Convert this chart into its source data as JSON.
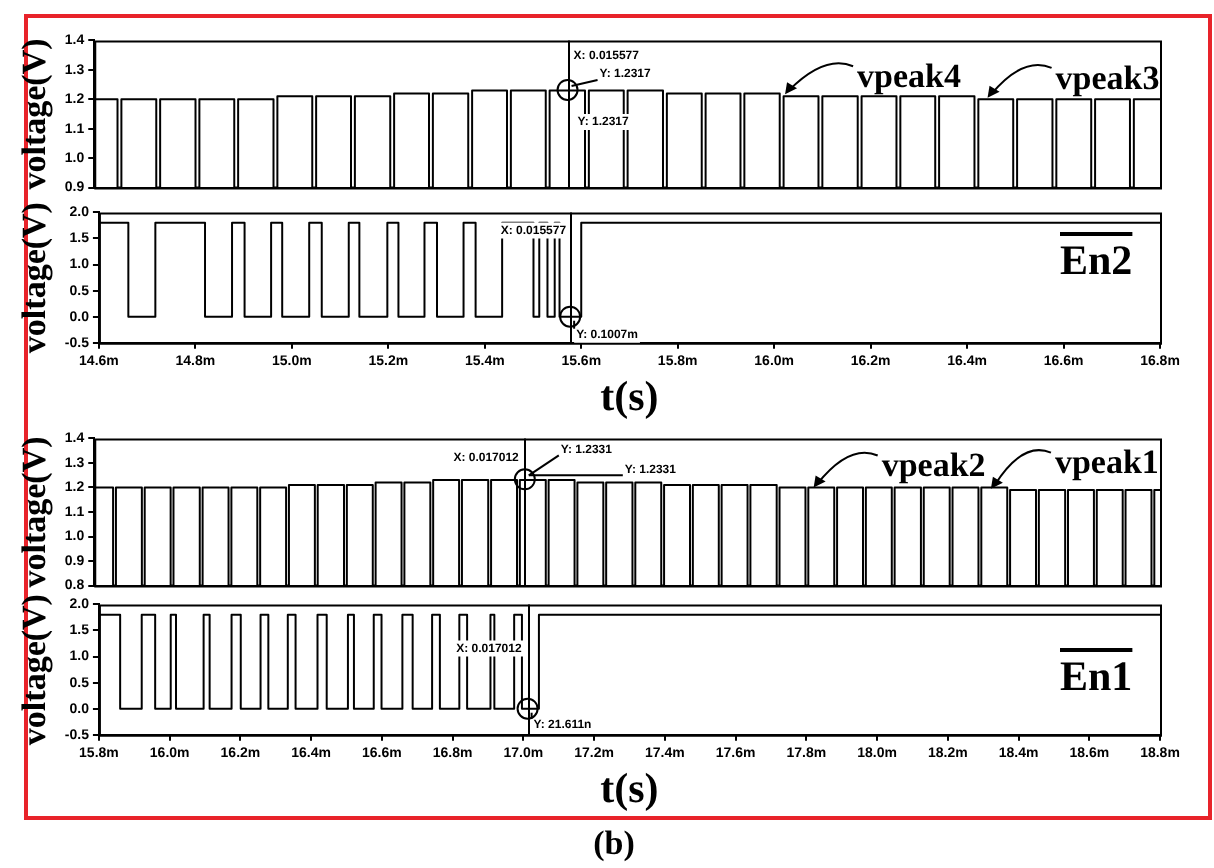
{
  "chart_data": [
    {
      "type": "step",
      "ylabel": "voltage(V)",
      "xlim": [
        14.6,
        16.8
      ],
      "ylim": [
        0.9,
        1.4
      ],
      "tick_labels": "y",
      "legend": false,
      "grid": false,
      "marker": "none",
      "xticks": [
        {
          "value": 14.6,
          "label": null
        },
        {
          "value": 14.8,
          "label": null
        },
        {
          "value": 15.0,
          "label": null
        },
        {
          "value": 15.2,
          "label": null
        },
        {
          "value": 15.4,
          "label": null
        },
        {
          "value": 15.6,
          "label": null
        },
        {
          "value": 15.8,
          "label": null
        },
        {
          "value": 16.0,
          "label": null
        },
        {
          "value": 16.2,
          "label": null
        },
        {
          "value": 16.4,
          "label": null
        },
        {
          "value": 16.6,
          "label": null
        },
        {
          "value": 16.8,
          "label": null
        }
      ],
      "yticks": [
        0.9,
        {
          "value": 1.0,
          "label": "1.0"
        },
        1.1,
        1.2,
        1.3,
        1.4
      ],
      "series": [
        {
          "color": "#000000",
          "x": [
            14.6,
            14.648,
            14.656,
            14.728,
            14.736,
            14.809,
            14.817,
            14.889,
            14.897,
            14.97,
            14.978,
            15.05,
            15.058,
            15.13,
            15.138,
            15.211,
            15.219,
            15.291,
            15.299,
            15.372,
            15.38,
            15.452,
            15.46,
            15.532,
            15.54,
            15.613,
            15.621,
            15.693,
            15.701,
            15.774,
            15.782,
            15.854,
            15.862,
            15.934,
            15.942,
            16.015,
            16.023,
            16.095,
            16.103,
            16.176,
            16.184,
            16.256,
            16.264,
            16.336,
            16.344,
            16.417,
            16.425,
            16.497,
            16.505,
            16.578,
            16.586,
            16.658,
            16.666,
            16.738,
            16.746,
            16.8
          ],
          "values": [
            1.2,
            0.9,
            1.2,
            0.9,
            1.2,
            0.9,
            1.2,
            0.9,
            1.2,
            0.9,
            1.21,
            0.9,
            1.21,
            0.9,
            1.21,
            0.9,
            1.22,
            0.9,
            1.22,
            0.9,
            1.23,
            0.9,
            1.23,
            0.9,
            1.23,
            0.9,
            1.23,
            0.9,
            1.23,
            0.9,
            1.22,
            0.9,
            1.22,
            0.9,
            1.22,
            0.9,
            1.21,
            0.9,
            1.21,
            0.9,
            1.21,
            0.9,
            1.21,
            0.9,
            1.21,
            0.9,
            1.2,
            0.9,
            1.2,
            0.9,
            1.2,
            0.9,
            1.2,
            0.9,
            1.2,
            1.2
          ]
        }
      ],
      "ref_lines": [
        {
          "axis": "x",
          "value": 15.577
        }
      ],
      "annotations": [
        {
          "text": "X: 0.015577",
          "x": 15.577,
          "y": 1.2317
        },
        {
          "text": "Y: 1.2317",
          "x": 15.577,
          "y": 1.2317
        },
        {
          "text": "Y: 1.2317",
          "x": 15.577,
          "y": 1.2317
        },
        {
          "text": "vpeak4",
          "x": 16.026,
          "y": 1.217
        },
        {
          "text": "vpeak3",
          "x": 16.444,
          "y": 1.205
        }
      ]
    },
    {
      "type": "step",
      "ylabel": "voltage(V)",
      "xlabel": "t(s)",
      "xlim": [
        14.6,
        16.8
      ],
      "ylim": [
        -0.5,
        2.0
      ],
      "legend": false,
      "grid": false,
      "marker": "none",
      "xticks": [
        {
          "value": 14.6,
          "label": "14.6m"
        },
        {
          "value": 14.8,
          "label": "14.8m"
        },
        {
          "value": 15.0,
          "label": "15.0m"
        },
        {
          "value": 15.2,
          "label": "15.2m"
        },
        {
          "value": 15.4,
          "label": "15.4m"
        },
        {
          "value": 15.6,
          "label": "15.6m"
        },
        {
          "value": 15.8,
          "label": "15.8m"
        },
        {
          "value": 16.0,
          "label": "16.0m"
        },
        {
          "value": 16.2,
          "label": "16.2m"
        },
        {
          "value": 16.4,
          "label": "16.4m"
        },
        {
          "value": 16.6,
          "label": "16.6m"
        },
        {
          "value": 16.8,
          "label": "16.8m"
        }
      ],
      "yticks": [
        -0.5,
        {
          "value": 0,
          "label": "0.0"
        },
        0.5,
        {
          "value": 1,
          "label": "1.0"
        },
        1.5,
        {
          "value": 2,
          "label": "2.0"
        }
      ],
      "series": [
        {
          "name": "En2",
          "color": "#000000",
          "x": [
            14.6,
            14.661,
            14.717,
            14.82,
            14.876,
            14.902,
            14.957,
            14.98,
            15.036,
            15.062,
            15.118,
            15.14,
            15.198,
            15.221,
            15.275,
            15.301,
            15.356,
            15.381,
            15.436,
            15.501,
            15.513,
            15.53,
            15.545,
            15.555,
            15.6,
            16.8
          ],
          "values": [
            1.8,
            0,
            1.8,
            0,
            1.8,
            0,
            1.8,
            0,
            1.8,
            0,
            1.8,
            0,
            1.8,
            0,
            1.8,
            0,
            1.8,
            0,
            1.8,
            0,
            1.8,
            0,
            1.8,
            0,
            1.8,
            1.8
          ]
        }
      ],
      "ref_lines": [
        {
          "axis": "x",
          "value": 15.577
        }
      ],
      "annotations": [
        "X: 0.015577",
        {
          "text": "Y: 0.1007m",
          "x": 15.577,
          "y": 0.0001007
        }
      ]
    },
    {
      "type": "step",
      "ylabel": "voltage(V)",
      "xlim": [
        15.8,
        18.8
      ],
      "ylim": [
        0.8,
        1.4
      ],
      "tick_labels": "y",
      "legend": false,
      "grid": false,
      "marker": "none",
      "xticks": [
        {
          "value": 15.8,
          "label": null
        },
        {
          "value": 16.0,
          "label": null
        },
        {
          "value": 16.2,
          "label": null
        },
        {
          "value": 16.4,
          "label": null
        },
        {
          "value": 16.6,
          "label": null
        },
        {
          "value": 16.8,
          "label": null
        },
        {
          "value": 17.0,
          "label": null
        },
        {
          "value": 17.2,
          "label": null
        },
        {
          "value": 17.4,
          "label": null
        },
        {
          "value": 17.6,
          "label": null
        },
        {
          "value": 17.8,
          "label": null
        },
        {
          "value": 18.0,
          "label": null
        },
        {
          "value": 18.2,
          "label": null
        },
        {
          "value": 18.4,
          "label": null
        },
        {
          "value": 18.6,
          "label": null
        },
        {
          "value": 18.8,
          "label": null
        }
      ],
      "yticks": [
        0.8,
        0.9,
        {
          "value": 1.0,
          "label": "1.0"
        },
        1.1,
        1.2,
        1.3,
        1.4
      ],
      "series": [
        {
          "color": "#000000",
          "x": [
            15.8,
            15.853,
            15.861,
            15.934,
            15.942,
            16.015,
            16.023,
            16.097,
            16.105,
            16.178,
            16.186,
            16.259,
            16.267,
            16.34,
            16.348,
            16.421,
            16.429,
            16.503,
            16.511,
            16.584,
            16.592,
            16.665,
            16.673,
            16.746,
            16.754,
            16.827,
            16.835,
            16.909,
            16.917,
            16.99,
            16.998,
            17.071,
            17.079,
            17.152,
            17.16,
            17.233,
            17.241,
            17.315,
            17.323,
            17.396,
            17.404,
            17.477,
            17.485,
            17.558,
            17.566,
            17.639,
            17.647,
            17.721,
            17.729,
            17.802,
            17.81,
            17.883,
            17.891,
            17.964,
            17.972,
            18.045,
            18.053,
            18.127,
            18.135,
            18.208,
            18.216,
            18.289,
            18.297,
            18.37,
            18.378,
            18.451,
            18.459,
            18.533,
            18.541,
            18.614,
            18.622,
            18.695,
            18.703,
            18.776,
            18.784,
            18.8
          ],
          "values": [
            1.2,
            0.8,
            1.2,
            0.8,
            1.2,
            0.8,
            1.2,
            0.8,
            1.2,
            0.8,
            1.2,
            0.8,
            1.2,
            0.8,
            1.21,
            0.8,
            1.21,
            0.8,
            1.21,
            0.8,
            1.22,
            0.8,
            1.22,
            0.8,
            1.23,
            0.8,
            1.23,
            0.8,
            1.23,
            0.8,
            1.23,
            0.8,
            1.23,
            0.8,
            1.22,
            0.8,
            1.22,
            0.8,
            1.22,
            0.8,
            1.21,
            0.8,
            1.21,
            0.8,
            1.21,
            0.8,
            1.21,
            0.8,
            1.2,
            0.8,
            1.2,
            0.8,
            1.2,
            0.8,
            1.2,
            0.8,
            1.2,
            0.8,
            1.2,
            0.8,
            1.2,
            0.8,
            1.2,
            0.8,
            1.19,
            0.8,
            1.19,
            0.8,
            1.19,
            0.8,
            1.19,
            0.8,
            1.19,
            0.8,
            1.19,
            1.19
          ]
        }
      ],
      "ref_lines": [
        {
          "axis": "x",
          "value": 17.012
        }
      ],
      "annotations": [
        {
          "text": "X: 0.017012",
          "x": 17.012,
          "y": 1.2331
        },
        {
          "text": "Y: 1.2331",
          "x": 17.012,
          "y": 1.2331
        },
        {
          "text": "Y: 1.2331",
          "x": 17.012,
          "y": 1.2331
        },
        {
          "text": "vpeak2",
          "x": 17.825,
          "y": 1.2
        },
        {
          "text": "vpeak1",
          "x": 18.324,
          "y": 1.195
        }
      ]
    },
    {
      "type": "step",
      "ylabel": "voltage(V)",
      "xlabel": "t(s)",
      "xlim": [
        15.8,
        18.8
      ],
      "ylim": [
        -0.5,
        2.0
      ],
      "legend": false,
      "grid": false,
      "marker": "none",
      "xticks": [
        {
          "value": 15.8,
          "label": "15.8m"
        },
        {
          "value": 16.0,
          "label": "16.0m"
        },
        {
          "value": 16.2,
          "label": "16.2m"
        },
        {
          "value": 16.4,
          "label": "16.4m"
        },
        {
          "value": 16.6,
          "label": "16.6m"
        },
        {
          "value": 16.8,
          "label": "16.8m"
        },
        {
          "value": 17.0,
          "label": "17.0m"
        },
        {
          "value": 17.2,
          "label": "17.2m"
        },
        {
          "value": 17.4,
          "label": "17.4m"
        },
        {
          "value": 17.6,
          "label": "17.6m"
        },
        {
          "value": 17.8,
          "label": "17.8m"
        },
        {
          "value": 18.0,
          "label": "18.0m"
        },
        {
          "value": 18.2,
          "label": "18.2m"
        },
        {
          "value": 18.4,
          "label": "18.4m"
        },
        {
          "value": 18.6,
          "label": "18.6m"
        },
        {
          "value": 18.8,
          "label": "18.8m"
        }
      ],
      "yticks": [
        -0.5,
        {
          "value": 0,
          "label": "0.0"
        },
        0.5,
        {
          "value": 1,
          "label": "1.0"
        },
        1.5,
        {
          "value": 2,
          "label": "2.0"
        }
      ],
      "series": [
        {
          "name": "En1",
          "color": "#000000",
          "x": [
            15.8,
            15.86,
            15.921,
            15.959,
            16.003,
            16.018,
            16.096,
            16.113,
            16.175,
            16.201,
            16.257,
            16.279,
            16.334,
            16.356,
            16.418,
            16.444,
            16.504,
            16.521,
            16.577,
            16.599,
            16.658,
            16.687,
            16.742,
            16.764,
            16.819,
            16.841,
            16.907,
            16.918,
            16.974,
            16.996,
            17.044,
            18.8
          ],
          "values": [
            1.8,
            0,
            1.8,
            0,
            1.8,
            0,
            1.8,
            0,
            1.8,
            0,
            1.8,
            0,
            1.8,
            0,
            1.8,
            0,
            1.8,
            0,
            1.8,
            0,
            1.8,
            0,
            1.8,
            0,
            1.8,
            0,
            1.8,
            0,
            1.8,
            0,
            1.8,
            1.8
          ]
        }
      ],
      "ref_lines": [
        {
          "axis": "x",
          "value": 17.012
        }
      ],
      "annotations": [
        "X: 0.017012",
        {
          "text": "Y: 21.611n",
          "x": 17.012,
          "y": 2.1611e-08
        },
        "(b)"
      ]
    }
  ]
}
